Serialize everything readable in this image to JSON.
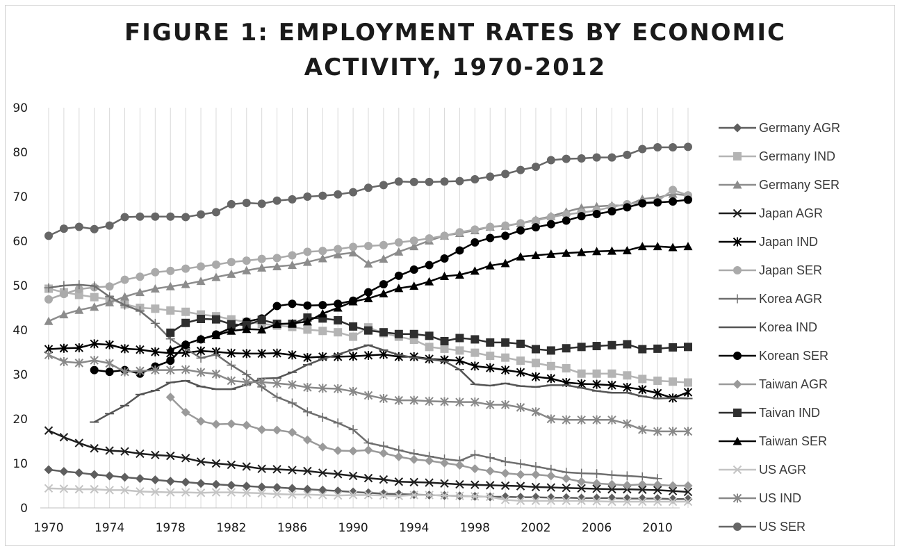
{
  "chart_data": {
    "type": "line",
    "title": "FIGURE 1: EMPLOYMENT RATES BY ECONOMIC ACTIVITY, 1970-2012",
    "xlabel": "",
    "ylabel": "",
    "xlim": [
      1970,
      2012
    ],
    "ylim": [
      0,
      90
    ],
    "x_ticks": [
      "1970",
      "1974",
      "1978",
      "1982",
      "1986",
      "1990",
      "1994",
      "1998",
      "2002",
      "2006",
      "2010"
    ],
    "y_ticks": [
      "0",
      "10",
      "20",
      "30",
      "40",
      "50",
      "60",
      "70",
      "80",
      "90"
    ],
    "grid": "vertical",
    "legend_position": "right",
    "series": [
      {
        "name": "Germany AGR",
        "color": "#5e5e5e",
        "marker": "diamond",
        "start": 1970,
        "values": [
          8.6,
          8.2,
          7.9,
          7.5,
          7.2,
          6.9,
          6.6,
          6.3,
          6.0,
          5.8,
          5.5,
          5.3,
          5.1,
          4.9,
          4.7,
          4.6,
          4.4,
          4.2,
          4.0,
          3.8,
          3.6,
          3.4,
          3.2,
          3.1,
          3.0,
          2.9,
          2.8,
          2.7,
          2.6,
          2.5,
          2.5,
          2.4,
          2.4,
          2.3,
          2.3,
          2.2,
          2.2,
          2.2,
          2.1,
          2.1,
          2.1,
          2.0,
          2.0
        ]
      },
      {
        "name": "Germany IND",
        "color": "#b4b4b4",
        "marker": "square",
        "start": 1970,
        "values": [
          49.3,
          48.5,
          47.9,
          47.4,
          46.9,
          45.8,
          45.0,
          44.8,
          44.4,
          44.1,
          43.5,
          43.1,
          42.4,
          41.8,
          41.4,
          41.0,
          40.7,
          40.1,
          39.8,
          39.5,
          38.5,
          40.6,
          39.3,
          38.5,
          37.8,
          36.2,
          35.8,
          35.4,
          34.9,
          34.2,
          33.8,
          33.1,
          32.6,
          31.9,
          31.4,
          30.2,
          30.2,
          30.2,
          29.8,
          29.0,
          28.6,
          28.4,
          28.2
        ]
      },
      {
        "name": "Germany SER",
        "color": "#8c8c8c",
        "marker": "triangle",
        "start": 1970,
        "values": [
          42.0,
          43.5,
          44.5,
          45.2,
          46.2,
          47.5,
          48.5,
          49.3,
          49.8,
          50.3,
          51.0,
          51.9,
          52.6,
          53.4,
          54.0,
          54.3,
          54.6,
          55.3,
          56.1,
          57.0,
          57.4,
          54.9,
          56.0,
          57.6,
          58.8,
          60.1,
          61.2,
          61.8,
          62.4,
          63.2,
          63.4,
          64.0,
          64.8,
          65.6,
          66.6,
          67.5,
          67.8,
          68.0,
          68.0,
          69.5,
          69.8,
          70.6,
          70.3
        ]
      },
      {
        "name": "Japan AGR",
        "color": "#1e1e1e",
        "marker": "x",
        "start": 1970,
        "values": [
          17.4,
          15.9,
          14.6,
          13.4,
          12.9,
          12.7,
          12.2,
          11.9,
          11.7,
          11.2,
          10.4,
          10.0,
          9.7,
          9.3,
          8.8,
          8.7,
          8.5,
          8.3,
          7.9,
          7.6,
          7.2,
          6.7,
          6.4,
          5.9,
          5.8,
          5.7,
          5.5,
          5.3,
          5.2,
          5.1,
          5.0,
          4.9,
          4.7,
          4.6,
          4.5,
          4.4,
          4.3,
          4.2,
          4.2,
          4.1,
          4.0,
          3.8,
          3.6
        ]
      },
      {
        "name": "Japan IND",
        "color": "#000000",
        "marker": "asterisk",
        "start": 1970,
        "values": [
          35.7,
          35.9,
          36.0,
          36.9,
          36.7,
          35.8,
          35.6,
          35.1,
          34.8,
          34.9,
          35.3,
          35.1,
          34.8,
          34.7,
          34.7,
          34.8,
          34.4,
          33.8,
          34.0,
          34.0,
          34.1,
          34.3,
          34.5,
          34.0,
          34.0,
          33.5,
          33.3,
          33.1,
          31.9,
          31.5,
          31.0,
          30.5,
          29.5,
          29.1,
          28.2,
          27.9,
          27.8,
          27.6,
          27.1,
          26.6,
          25.8,
          24.7,
          26.0
        ]
      },
      {
        "name": "Japan SER",
        "color": "#aaaaaa",
        "marker": "circle",
        "start": 1970,
        "values": [
          46.9,
          48.1,
          49.2,
          49.6,
          49.8,
          51.3,
          52.0,
          53.0,
          53.3,
          53.8,
          54.3,
          54.7,
          55.3,
          55.6,
          56.0,
          56.2,
          56.8,
          57.6,
          57.8,
          58.2,
          58.7,
          58.9,
          59.1,
          59.7,
          60.1,
          60.6,
          61.2,
          62.0,
          62.6,
          63.2,
          63.5,
          64.0,
          64.6,
          65.4,
          66.0,
          66.4,
          66.9,
          67.7,
          68.3,
          68.7,
          69.0,
          71.5,
          70.3
        ]
      },
      {
        "name": "Korea AGR",
        "color": "#6e6e6e",
        "marker": "plus",
        "start": 1970,
        "values": [
          49.5,
          50.0,
          50.2,
          49.9,
          47.5,
          45.6,
          44.3,
          41.5,
          38.0,
          35.8,
          33.7,
          34.5,
          32.1,
          30.0,
          27.2,
          24.9,
          23.6,
          21.6,
          20.4,
          19.1,
          17.6,
          14.6,
          13.9,
          13.0,
          12.2,
          11.6,
          11.0,
          10.6,
          12.0,
          11.3,
          10.4,
          9.9,
          9.3,
          8.7,
          8.0,
          7.8,
          7.7,
          7.4,
          7.2,
          7.0,
          6.6,
          null,
          null
        ]
      },
      {
        "name": "Korea IND",
        "color": "#555555",
        "marker": "dash",
        "start": 1970,
        "values": [
          null,
          null,
          null,
          19.3,
          21.2,
          23.0,
          25.5,
          26.4,
          28.2,
          28.6,
          27.3,
          26.7,
          26.7,
          27.7,
          29.1,
          29.2,
          30.5,
          32.2,
          33.5,
          34.5,
          35.6,
          36.6,
          35.5,
          34.4,
          33.8,
          33.4,
          33.0,
          31.1,
          27.8,
          27.5,
          28.0,
          27.4,
          27.2,
          27.6,
          27.6,
          27.0,
          26.3,
          25.9,
          25.9,
          25.1,
          24.6,
          24.7,
          24.6
        ]
      },
      {
        "name": "Korean SER",
        "color": "#000000",
        "marker": "circle",
        "start": 1970,
        "values": [
          null,
          null,
          null,
          31.0,
          30.6,
          31.0,
          30.2,
          31.8,
          33.1,
          36.7,
          null,
          null,
          null,
          null,
          null,
          null,
          null,
          null,
          null,
          null,
          null,
          null,
          null,
          null,
          null,
          null,
          null,
          null,
          null,
          null,
          null,
          null,
          null,
          null,
          null,
          null,
          null,
          null,
          null,
          null,
          null,
          null,
          null
        ]
      },
      {
        "name": "Korean SER",
        "color": "#000000",
        "marker": "circle",
        "start": 1980,
        "values": [
          37.9,
          39.0,
          40.5,
          41.9,
          42.6,
          45.4,
          45.9,
          45.5,
          45.6,
          45.9,
          46.6,
          48.5,
          50.3,
          52.2,
          53.6,
          54.6,
          56.1,
          57.9,
          59.7,
          60.7,
          61.2,
          62.4,
          63.1,
          63.8,
          64.6,
          65.6,
          66.1,
          66.7,
          67.6,
          68.5,
          68.7,
          68.9,
          69.3
        ]
      },
      {
        "name": "Taiwan AGR",
        "color": "#9a9a9a",
        "marker": "diamond",
        "start": 1978,
        "values": [
          24.9,
          21.5,
          19.5,
          18.8,
          18.9,
          18.6,
          17.6,
          17.5,
          17.0,
          15.3,
          13.7,
          12.9,
          12.8,
          13.0,
          12.3,
          11.5,
          10.9,
          10.6,
          10.1,
          9.6,
          8.8,
          8.3,
          7.8,
          7.5,
          7.5,
          7.2,
          6.6,
          5.9,
          5.5,
          5.3,
          5.1,
          5.3,
          5.2,
          5.0,
          5.0
        ]
      },
      {
        "name": "Taivan IND",
        "color": "#2e2e2e",
        "marker": "square",
        "start": 1978,
        "values": [
          39.4,
          41.6,
          42.5,
          42.4,
          41.3,
          41.1,
          42.3,
          41.4,
          41.4,
          42.8,
          42.6,
          42.2,
          40.8,
          39.9,
          39.5,
          39.1,
          39.1,
          38.7,
          37.5,
          38.2,
          37.9,
          37.2,
          37.2,
          36.9,
          35.7,
          35.4,
          35.9,
          36.2,
          36.4,
          36.6,
          36.8,
          35.7,
          35.8,
          36.1,
          36.2
        ]
      },
      {
        "name": "Taiwan SER",
        "color": "#000000",
        "marker": "triangle",
        "start": 1978,
        "values": [
          35.6,
          36.8,
          38.0,
          38.8,
          39.8,
          40.2,
          40.1,
          41.3,
          41.5,
          41.9,
          43.7,
          45.0,
          46.4,
          47.1,
          48.2,
          49.4,
          49.9,
          50.9,
          52.1,
          52.4,
          53.3,
          54.5,
          55.0,
          56.5,
          56.8,
          57.1,
          57.3,
          57.5,
          57.7,
          57.8,
          57.9,
          58.8,
          58.8,
          58.6,
          58.8
        ]
      },
      {
        "name": "US AGR",
        "color": "#c4c4c4",
        "marker": "x",
        "start": 1970,
        "values": [
          4.4,
          4.3,
          4.2,
          4.2,
          4.0,
          4.0,
          3.7,
          3.6,
          3.5,
          3.5,
          3.4,
          3.5,
          3.5,
          3.4,
          3.3,
          3.1,
          3.0,
          3.0,
          2.9,
          2.8,
          2.9,
          2.9,
          2.8,
          2.7,
          2.9,
          2.9,
          2.8,
          2.7,
          2.6,
          2.5,
          1.8,
          1.6,
          1.6,
          1.6,
          1.6,
          1.6,
          1.5,
          1.4,
          1.4,
          1.4,
          1.4,
          1.4,
          1.4
        ]
      },
      {
        "name": "US IND",
        "color": "#888888",
        "marker": "asterisk",
        "start": 1970,
        "values": [
          34.4,
          32.9,
          32.6,
          33.2,
          32.5,
          30.6,
          30.8,
          31.0,
          31.0,
          31.1,
          30.5,
          30.1,
          28.6,
          28.3,
          28.3,
          28.0,
          27.7,
          27.1,
          26.9,
          26.8,
          26.2,
          25.3,
          24.6,
          24.2,
          24.2,
          24.0,
          23.9,
          23.8,
          23.8,
          23.2,
          23.2,
          22.6,
          21.6,
          20.0,
          19.8,
          19.8,
          19.8,
          19.8,
          18.9,
          17.6,
          17.2,
          17.2,
          17.2
        ]
      },
      {
        "name": "US SER",
        "color": "#666666",
        "marker": "circle",
        "start": 1970,
        "values": [
          61.2,
          62.8,
          63.2,
          62.7,
          63.5,
          65.4,
          65.5,
          65.5,
          65.5,
          65.4,
          66.0,
          66.5,
          68.3,
          68.6,
          68.4,
          69.1,
          69.4,
          70.0,
          70.2,
          70.5,
          71.0,
          72.0,
          72.6,
          73.4,
          73.3,
          73.3,
          73.4,
          73.5,
          73.9,
          74.5,
          75.1,
          76.0,
          76.7,
          78.2,
          78.5,
          78.6,
          78.8,
          78.8,
          79.4,
          80.7,
          81.1,
          81.1,
          81.2
        ]
      }
    ]
  }
}
